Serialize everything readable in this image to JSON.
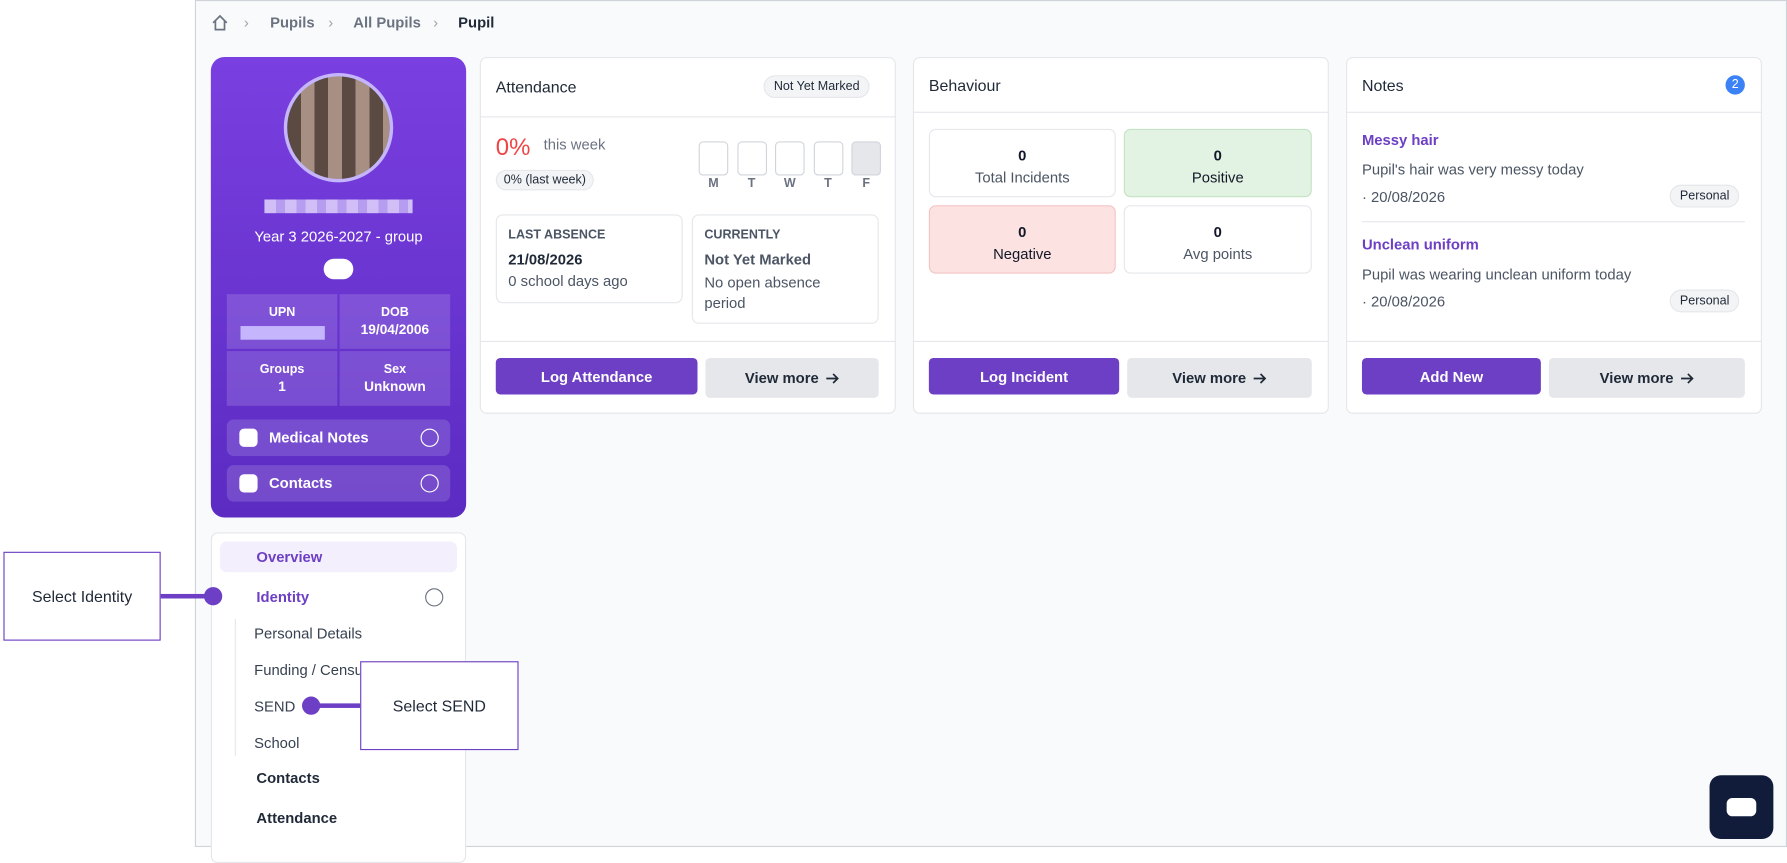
{
  "breadcrumb": [
    "Pupils",
    "All Pupils",
    "Pupil"
  ],
  "profile": {
    "group": "Year 3 2026-2027 - group",
    "stats": [
      {
        "label": "UPN"
      },
      {
        "label": "DOB",
        "value": "19/04/2006"
      },
      {
        "label": "Groups",
        "value": "1"
      },
      {
        "label": "Sex",
        "value": "Unknown"
      }
    ],
    "accordions": [
      "Medical Notes",
      "Contacts"
    ]
  },
  "nav": {
    "items": [
      "Overview",
      "Identity",
      "Contacts",
      "Attendance"
    ],
    "identity_children": [
      "Personal Details",
      "Funding / Census",
      "SEND",
      "School"
    ]
  },
  "attendance": {
    "title": "Attendance",
    "status": "Not Yet Marked",
    "percent": "0%",
    "period": "this week",
    "last_week": "0% (last week)",
    "days": [
      "M",
      "T",
      "W",
      "T",
      "F"
    ],
    "last_absence": {
      "label": "LAST ABSENCE",
      "date": "21/08/2026",
      "ago": "0 school days ago"
    },
    "currently": {
      "label": "CURRENTLY",
      "value": "Not Yet Marked",
      "detail": "No open absence period"
    },
    "buttons": [
      "Log Attendance",
      "View more"
    ]
  },
  "behaviour": {
    "title": "Behaviour",
    "tiles": [
      {
        "value": 0,
        "label": "Total Incidents"
      },
      {
        "value": 0,
        "label": "Positive"
      },
      {
        "value": 0,
        "label": "Negative"
      },
      {
        "value": 0,
        "label": "Avg points"
      }
    ],
    "buttons": [
      "Log Incident",
      "View more"
    ]
  },
  "notes": {
    "title": "Notes",
    "count": 2,
    "items": [
      {
        "title": "Messy hair",
        "text": "Pupil's hair was very messy today",
        "date": "· 20/08/2026",
        "tag": "Personal"
      },
      {
        "title": "Unclean uniform",
        "text": "Pupil was wearing unclean uniform today",
        "date": "· 20/08/2026",
        "tag": "Personal"
      }
    ],
    "buttons": [
      "Add New",
      "View more"
    ]
  },
  "callouts": [
    "Select Identity",
    "Select SEND"
  ]
}
